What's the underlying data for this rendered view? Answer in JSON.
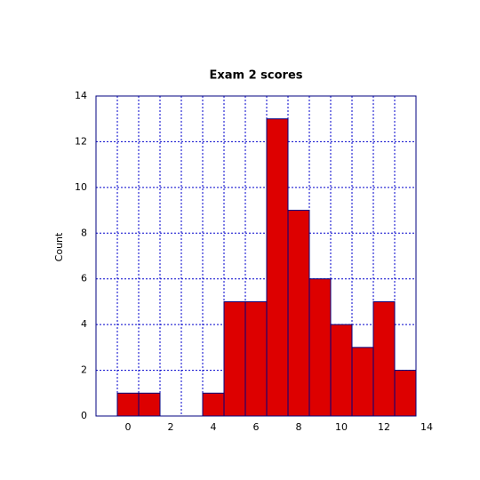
{
  "chart_data": {
    "type": "histogram",
    "title": "Exam 2 scores",
    "y_label": "Count",
    "bins": [
      -0.5,
      0.5,
      1.5,
      2.5,
      3.5,
      4.5,
      5.5,
      6.5,
      7.5,
      8.5,
      9.5,
      10.5,
      11.5,
      12.5,
      13.5
    ],
    "values": [
      1,
      1,
      0,
      0,
      1,
      5,
      5,
      13,
      9,
      6,
      4,
      3,
      5,
      2
    ],
    "color": "#dd0000",
    "edge_color": "#000080",
    "xlim": [
      -1.5,
      13.5
    ],
    "xticks": [
      0,
      2,
      4,
      6,
      8,
      10,
      12,
      14
    ],
    "ylim": [
      0,
      14
    ],
    "yticks": [
      0,
      2,
      4,
      6,
      8,
      10,
      12,
      14
    ],
    "grid": true
  }
}
